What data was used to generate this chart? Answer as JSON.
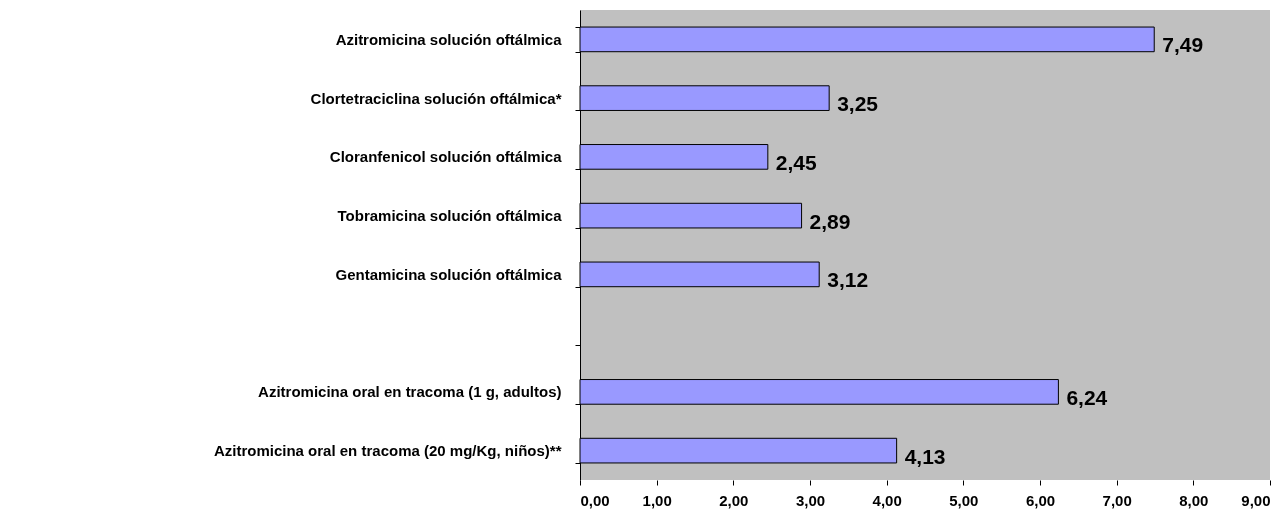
{
  "chart_data": {
    "type": "bar",
    "orientation": "horizontal",
    "categories": [
      "Azitromicina solución oftálmica",
      "Clortetraciclina solución oftálmica*",
      "Cloranfenicol solución oftálmica",
      "Tobramicina solución oftálmica",
      "Gentamicina solución oftálmica",
      null,
      "Azitromicina oral en tracoma (1 g, adultos)",
      "Azitromicina oral en tracoma (20 mg/Kg, niños)**"
    ],
    "values": [
      7.49,
      3.25,
      2.45,
      2.89,
      3.12,
      null,
      6.24,
      4.13
    ],
    "value_labels": [
      "7,49",
      "3,25",
      "2,45",
      "2,89",
      "3,12",
      null,
      "6,24",
      "4,13"
    ],
    "color": "#9999ff",
    "xlim": [
      0,
      9
    ],
    "xticks": [
      {
        "value": 0,
        "label": "0,00"
      },
      {
        "value": 1,
        "label": "1,00"
      },
      {
        "value": 2,
        "label": "2,00"
      },
      {
        "value": 3,
        "label": "3,00"
      },
      {
        "value": 4,
        "label": "4,00"
      },
      {
        "value": 5,
        "label": "5,00"
      },
      {
        "value": 6,
        "label": "6,00"
      },
      {
        "value": 7,
        "label": "7,00"
      },
      {
        "value": 8,
        "label": "8,00"
      },
      {
        "value": 9,
        "label": "9,00"
      }
    ],
    "grid": false
  }
}
